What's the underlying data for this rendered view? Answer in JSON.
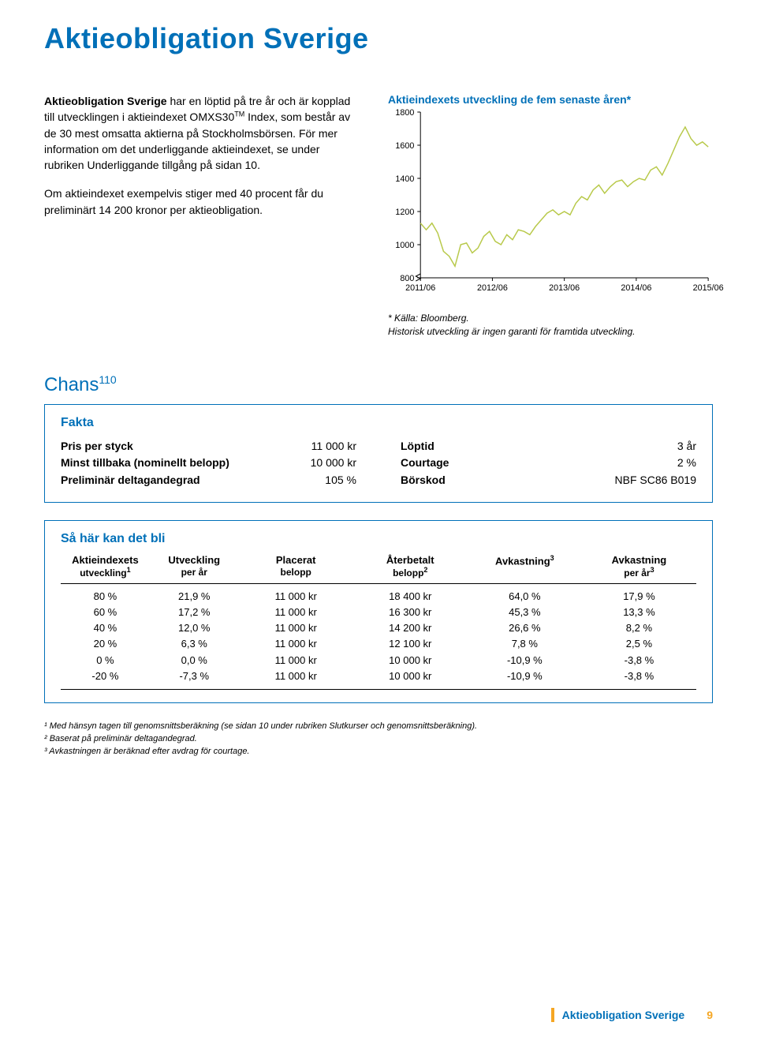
{
  "title": "Aktieobligation Sverige",
  "colors": {
    "brand_blue": "#0070b8",
    "accent_orange": "#f5a623",
    "chart_line": "#b8c94a",
    "axis": "#000000",
    "bg": "#ffffff"
  },
  "intro": {
    "lead_bold": "Aktieobligation Sverige",
    "p1_rest": " har en löptid på tre år och är kopplad till utvecklingen i aktieindexet OMXS30",
    "p1_after_tm": " Index, som består av de 30 mest omsatta aktierna på Stockholmsbörsen. För mer information om det underliggande aktieindexet, se under rubriken Underliggande tillgång på sidan 10.",
    "p2": "Om aktieindexet exempelvis stiger med 40 procent får du preliminärt 14 200 kronor per aktieobligation."
  },
  "chart": {
    "title": "Aktieindexets utveckling de fem senaste åren*",
    "type": "line",
    "ylim": [
      800,
      1800
    ],
    "yticks": [
      800,
      1000,
      1200,
      1400,
      1600,
      1800
    ],
    "xlabels": [
      "2011/06",
      "2012/06",
      "2013/06",
      "2014/06",
      "2015/06"
    ],
    "line_color": "#b8c94a",
    "line_width": 1.5,
    "axis_color": "#000000",
    "tick_fontsize": 11,
    "data": [
      [
        0.0,
        1130
      ],
      [
        0.02,
        1090
      ],
      [
        0.04,
        1130
      ],
      [
        0.06,
        1070
      ],
      [
        0.08,
        960
      ],
      [
        0.1,
        930
      ],
      [
        0.12,
        870
      ],
      [
        0.14,
        1000
      ],
      [
        0.16,
        1010
      ],
      [
        0.18,
        950
      ],
      [
        0.2,
        980
      ],
      [
        0.22,
        1050
      ],
      [
        0.24,
        1080
      ],
      [
        0.26,
        1020
      ],
      [
        0.28,
        1000
      ],
      [
        0.3,
        1060
      ],
      [
        0.32,
        1030
      ],
      [
        0.34,
        1090
      ],
      [
        0.36,
        1080
      ],
      [
        0.38,
        1060
      ],
      [
        0.4,
        1110
      ],
      [
        0.42,
        1150
      ],
      [
        0.44,
        1190
      ],
      [
        0.46,
        1210
      ],
      [
        0.48,
        1180
      ],
      [
        0.5,
        1200
      ],
      [
        0.52,
        1180
      ],
      [
        0.54,
        1250
      ],
      [
        0.56,
        1290
      ],
      [
        0.58,
        1270
      ],
      [
        0.6,
        1330
      ],
      [
        0.62,
        1360
      ],
      [
        0.64,
        1310
      ],
      [
        0.66,
        1350
      ],
      [
        0.68,
        1380
      ],
      [
        0.7,
        1390
      ],
      [
        0.72,
        1350
      ],
      [
        0.74,
        1380
      ],
      [
        0.76,
        1400
      ],
      [
        0.78,
        1390
      ],
      [
        0.8,
        1450
      ],
      [
        0.82,
        1470
      ],
      [
        0.84,
        1420
      ],
      [
        0.86,
        1490
      ],
      [
        0.88,
        1570
      ],
      [
        0.9,
        1650
      ],
      [
        0.92,
        1710
      ],
      [
        0.94,
        1640
      ],
      [
        0.96,
        1600
      ],
      [
        0.98,
        1620
      ],
      [
        1.0,
        1590
      ]
    ],
    "break_mark_y": 800,
    "footnote1": "* Källa: Bloomberg.",
    "footnote2": "Historisk utveckling är ingen garanti för framtida utveckling."
  },
  "chans_label": "Chans",
  "chans_sup": "110",
  "fakta": {
    "title": "Fakta",
    "left": [
      {
        "label": "Pris per styck",
        "value": "11 000 kr"
      },
      {
        "label": "Minst tillbaka (nominellt belopp)",
        "value": "10 000 kr"
      },
      {
        "label": "Preliminär deltagandegrad",
        "value": "105 %"
      }
    ],
    "right": [
      {
        "label": "Löptid",
        "value": "3 år"
      },
      {
        "label": "Courtage",
        "value": "2 %"
      },
      {
        "label": "Börskod",
        "value": "NBF SC86 B019"
      }
    ]
  },
  "scenario": {
    "title": "Så här kan det bli",
    "headers": {
      "c1a": "Aktieindexets",
      "c1b": "utveckling",
      "c1sup": "1",
      "c2a": "Utveckling",
      "c2b": "per år",
      "c3a": "Placerat",
      "c3b": "belopp",
      "c4a": "Återbetalt",
      "c4b": "belopp",
      "c4sup": "2",
      "c5a": "Avkastning",
      "c5sup": "3",
      "c6a": "Avkastning",
      "c6b": "per år",
      "c6sup": "3"
    },
    "rows": [
      {
        "c1": "80 %",
        "c2": "21,9 %",
        "c3": "11 000 kr",
        "c4": "18 400 kr",
        "c5": "64,0 %",
        "c6": "17,9 %"
      },
      {
        "c1": "60 %",
        "c2": "17,2 %",
        "c3": "11 000 kr",
        "c4": "16 300 kr",
        "c5": "45,3 %",
        "c6": "13,3 %"
      },
      {
        "c1": "40 %",
        "c2": "12,0 %",
        "c3": "11 000 kr",
        "c4": "14 200 kr",
        "c5": "26,6 %",
        "c6": "8,2 %"
      },
      {
        "c1": "20 %",
        "c2": "6,3 %",
        "c3": "11 000 kr",
        "c4": "12 100 kr",
        "c5": "7,8 %",
        "c6": "2,5 %"
      },
      {
        "c1": "0 %",
        "c2": "0,0 %",
        "c3": "11 000 kr",
        "c4": "10 000 kr",
        "c5": "-10,9 %",
        "c6": "-3,8 %"
      },
      {
        "c1": "-20 %",
        "c2": "-7,3 %",
        "c3": "11 000 kr",
        "c4": "10 000 kr",
        "c5": "-10,9 %",
        "c6": "-3,8 %"
      }
    ]
  },
  "footnotes": {
    "f1": "¹ Med hänsyn tagen till genomsnittsberäkning (se sidan 10 under rubriken Slutkurser och genomsnittsberäkning).",
    "f2": "² Baserat på preliminär deltagandegrad.",
    "f3": "³ Avkastningen är beräknad efter avdrag för courtage."
  },
  "footer": {
    "title": "Aktieobligation Sverige",
    "page": "9"
  }
}
